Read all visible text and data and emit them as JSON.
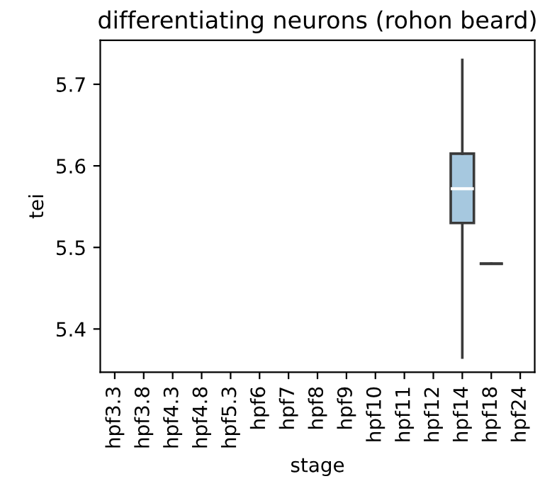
{
  "chart_data": {
    "type": "box",
    "title": "differentiating neurons (rohon beard)",
    "xlabel": "stage",
    "ylabel": "tei",
    "categories": [
      "hpf3.3",
      "hpf3.8",
      "hpf4.3",
      "hpf4.8",
      "hpf5.3",
      "hpf6",
      "hpf7",
      "hpf8",
      "hpf9",
      "hpf10",
      "hpf11",
      "hpf12",
      "hpf14",
      "hpf18",
      "hpf24"
    ],
    "boxes": [
      null,
      null,
      null,
      null,
      null,
      null,
      null,
      null,
      null,
      null,
      null,
      null,
      {
        "low": 5.365,
        "q1": 5.53,
        "median": 5.572,
        "q3": 5.615,
        "high": 5.73
      },
      {
        "low": 5.48,
        "q1": 5.48,
        "median": 5.48,
        "q3": 5.48,
        "high": 5.48
      },
      null
    ],
    "colors": [
      null,
      null,
      null,
      null,
      null,
      null,
      null,
      null,
      null,
      null,
      null,
      null,
      "#a6c8df",
      "#3a3a3a",
      null
    ],
    "ylim": [
      5.347,
      5.754
    ],
    "yticks": [
      5.4,
      5.5,
      5.6,
      5.7
    ],
    "grid": false,
    "legend": false
  }
}
